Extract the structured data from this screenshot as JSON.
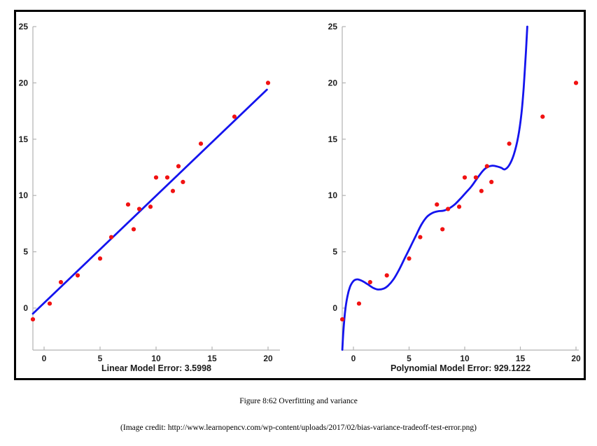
{
  "figure": {
    "caption": "Figure 8:62 Overfitting and variance",
    "credit": "(Image credit: http://www.learnopencv.com/wp-content/uploads/2017/02/bias-variance-tradeoff-test-error.png)"
  },
  "colors": {
    "point": "#f11212",
    "fit": "#1414ee",
    "axis": "#b2b2b2",
    "tick_label": "#202020",
    "frame": "#000000",
    "background": "#ffffff"
  },
  "chart_data": [
    {
      "type": "scatter",
      "title": "Linear Model Error: 3.5998",
      "xlabel": "",
      "ylabel": "",
      "x_ticks": [
        0,
        5,
        10,
        15,
        20
      ],
      "y_ticks": [
        0,
        5,
        10,
        15,
        20,
        25
      ],
      "xlim": [
        -1,
        21.1
      ],
      "ylim": [
        -3.73,
        25
      ],
      "grid": false,
      "legend": false,
      "points": [
        [
          -1,
          -1
        ],
        [
          0.5,
          0.4
        ],
        [
          1.5,
          2.3
        ],
        [
          3,
          2.9
        ],
        [
          5,
          4.4
        ],
        [
          6,
          6.3
        ],
        [
          7.5,
          9.2
        ],
        [
          8,
          7
        ],
        [
          8.5,
          8.8
        ],
        [
          9.5,
          9
        ],
        [
          10,
          11.6
        ],
        [
          11,
          11.6
        ],
        [
          11.5,
          10.4
        ],
        [
          12,
          12.6
        ],
        [
          12.4,
          11.2
        ],
        [
          14,
          14.6
        ],
        [
          17,
          17
        ],
        [
          20,
          20
        ]
      ],
      "fit_line": [
        [
          -1,
          -0.5
        ],
        [
          19.9,
          19.4
        ]
      ]
    },
    {
      "type": "scatter",
      "title": "Polynomial Model Error: 929.1222",
      "xlabel": "",
      "ylabel": "",
      "x_ticks": [
        0,
        5,
        10,
        15,
        20
      ],
      "y_ticks": [
        0,
        5,
        10,
        15,
        20,
        25
      ],
      "xlim": [
        -1,
        20.2
      ],
      "ylim": [
        -3.73,
        25
      ],
      "grid": false,
      "legend": false,
      "points": [
        [
          -1,
          -1
        ],
        [
          0.5,
          0.4
        ],
        [
          1.5,
          2.3
        ],
        [
          3,
          2.9
        ],
        [
          5,
          4.4
        ],
        [
          6,
          6.3
        ],
        [
          7.5,
          9.2
        ],
        [
          8,
          7
        ],
        [
          8.5,
          8.8
        ],
        [
          9.5,
          9
        ],
        [
          10,
          11.6
        ],
        [
          11,
          11.6
        ],
        [
          11.5,
          10.4
        ],
        [
          12,
          12.6
        ],
        [
          12.4,
          11.2
        ],
        [
          14,
          14.6
        ],
        [
          17,
          17
        ],
        [
          20,
          20
        ]
      ],
      "fit_curve": [
        [
          -1,
          -3.7
        ],
        [
          -0.9,
          -2.0
        ],
        [
          -0.75,
          -0.3
        ],
        [
          -0.55,
          1.0
        ],
        [
          -0.3,
          1.9
        ],
        [
          0,
          2.4
        ],
        [
          0.35,
          2.55
        ],
        [
          0.8,
          2.4
        ],
        [
          1.3,
          2.1
        ],
        [
          1.8,
          1.78
        ],
        [
          2.2,
          1.65
        ],
        [
          2.7,
          1.72
        ],
        [
          3.1,
          1.98
        ],
        [
          3.6,
          2.55
        ],
        [
          4.1,
          3.4
        ],
        [
          4.6,
          4.4
        ],
        [
          5.1,
          5.4
        ],
        [
          5.6,
          6.4
        ],
        [
          6.1,
          7.4
        ],
        [
          6.6,
          8.1
        ],
        [
          7.1,
          8.45
        ],
        [
          7.6,
          8.6
        ],
        [
          8.1,
          8.65
        ],
        [
          8.6,
          8.85
        ],
        [
          9.1,
          9.2
        ],
        [
          9.6,
          9.7
        ],
        [
          10.1,
          10.25
        ],
        [
          10.6,
          10.8
        ],
        [
          11.1,
          11.5
        ],
        [
          11.6,
          12.15
        ],
        [
          12,
          12.5
        ],
        [
          12.5,
          12.65
        ],
        [
          13,
          12.55
        ],
        [
          13.3,
          12.45
        ],
        [
          13.6,
          12.32
        ],
        [
          14,
          12.7
        ],
        [
          14.4,
          13.6
        ],
        [
          14.8,
          15.2
        ],
        [
          15.1,
          17.3
        ],
        [
          15.3,
          19.6
        ],
        [
          15.5,
          22.8
        ],
        [
          15.62,
          25
        ]
      ]
    }
  ]
}
